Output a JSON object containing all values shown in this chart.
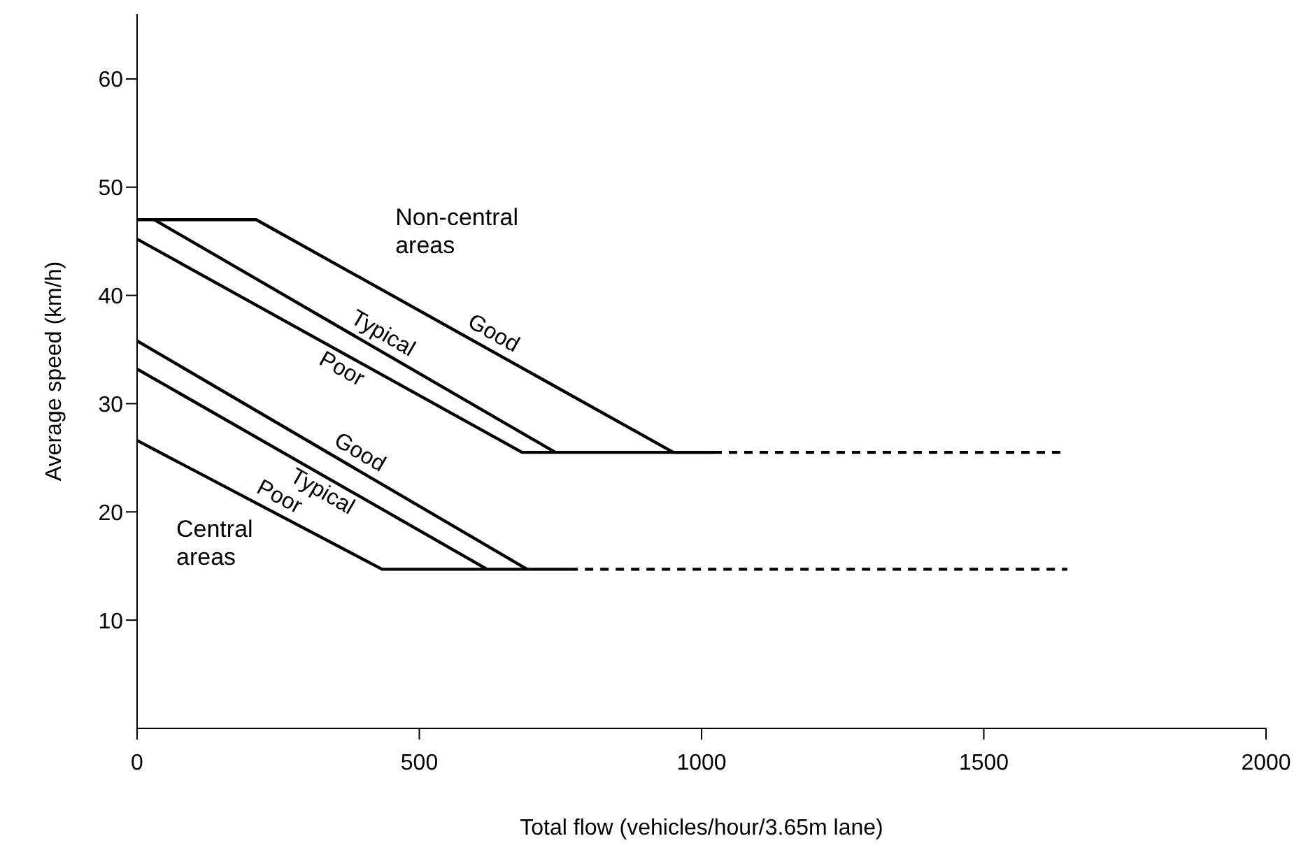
{
  "chart_data": {
    "type": "line",
    "xlabel": "Total flow (vehicles/hour/3.65m lane)",
    "ylabel": "Average speed (km/h)",
    "xlim": [
      0,
      2000
    ],
    "xticks": [
      0,
      500,
      1000,
      1500,
      2000
    ],
    "ylim": [
      0,
      66
    ],
    "yticks": [
      10,
      20,
      30,
      40,
      50,
      60
    ],
    "grid": false,
    "marker": "none",
    "series": [
      {
        "name": "Good",
        "color": "#000000",
        "x": [
          0,
          211,
          950,
          1021
        ],
        "values": [
          47,
          47,
          25.5,
          25.5
        ]
      },
      {
        "name": "Typical",
        "color": "#000000",
        "x": [
          30,
          741
        ],
        "values": [
          47,
          25.5
        ]
      },
      {
        "name": "Poor",
        "color": "#000000",
        "x": [
          0,
          682,
          1021
        ],
        "values": [
          45.2,
          25.5,
          25.5
        ]
      },
      {
        "color": "#000000",
        "x": [
          1021,
          1636
        ],
        "values": [
          25.5,
          25.5
        ],
        "line_style": "dashed"
      },
      {
        "name": "Good",
        "color": "#000000",
        "x": [
          0,
          691
        ],
        "values": [
          35.8,
          14.7
        ]
      },
      {
        "name": "Typical",
        "color": "#000000",
        "x": [
          0,
          620
        ],
        "values": [
          33.2,
          14.7
        ]
      },
      {
        "name": "Poor",
        "color": "#000000",
        "x": [
          0,
          434,
          766
        ],
        "values": [
          26.6,
          14.7,
          14.7
        ]
      },
      {
        "color": "#000000",
        "x": [
          766,
          1648
        ],
        "values": [
          14.7,
          14.7
        ],
        "line_style": "dashed"
      }
    ],
    "annotations": [
      "Non-central areas",
      "Central areas"
    ]
  }
}
